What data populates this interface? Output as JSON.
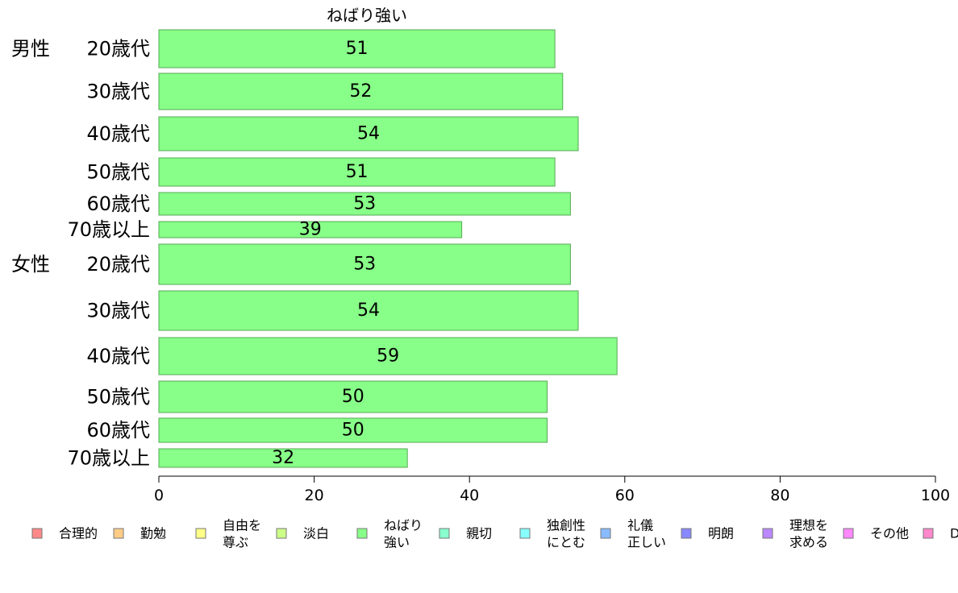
{
  "chart_data": {
    "type": "bar",
    "orientation": "horizontal",
    "title": "ねばり強い",
    "groups": [
      {
        "name": "男性",
        "rows": [
          {
            "label": "20歳代",
            "value": 51
          },
          {
            "label": "30歳代",
            "value": 52
          },
          {
            "label": "40歳代",
            "value": 54
          },
          {
            "label": "50歳代",
            "value": 51
          },
          {
            "label": "60歳代",
            "value": 53
          },
          {
            "label": "70歳以上",
            "value": 39
          }
        ]
      },
      {
        "name": "女性",
        "rows": [
          {
            "label": "20歳代",
            "value": 53
          },
          {
            "label": "30歳代",
            "value": 54
          },
          {
            "label": "40歳代",
            "value": 59
          },
          {
            "label": "50歳代",
            "value": 50
          },
          {
            "label": "60歳代",
            "value": 50
          },
          {
            "label": "70歳以上",
            "value": 32
          }
        ]
      }
    ],
    "data_labels": [
      "51",
      "52",
      "54",
      "51",
      "53",
      "39",
      "53",
      "54",
      "59",
      "50",
      "50",
      "32"
    ],
    "xlim": [
      0,
      100
    ],
    "x_ticks": [
      "0",
      "20",
      "40",
      "60",
      "80",
      "100"
    ],
    "bar_color": "#88ff88",
    "bar_border": "#55aa55",
    "legend_position": "bottom",
    "legend": [
      {
        "lines": [
          "合理的"
        ],
        "color": "#ff8888"
      },
      {
        "lines": [
          "勤勉"
        ],
        "color": "#ffcc88"
      },
      {
        "lines": [
          "自由を",
          "尊ぶ"
        ],
        "color": "#ffff88"
      },
      {
        "lines": [
          "淡白"
        ],
        "color": "#ccff88"
      },
      {
        "lines": [
          "ねばり",
          "強い"
        ],
        "color": "#88ff88"
      },
      {
        "lines": [
          "親切"
        ],
        "color": "#88ffcc"
      },
      {
        "lines": [
          "独創性",
          "にとむ"
        ],
        "color": "#88ffff"
      },
      {
        "lines": [
          "礼儀",
          "正しい"
        ],
        "color": "#88bbff"
      },
      {
        "lines": [
          "明朗"
        ],
        "color": "#8888ff"
      },
      {
        "lines": [
          "理想を",
          "求める"
        ],
        "color": "#bb88ff"
      },
      {
        "lines": [
          "その他"
        ],
        "color": "#ff88ff"
      },
      {
        "lines": [
          "D"
        ],
        "color": "#ff88cc"
      }
    ]
  }
}
